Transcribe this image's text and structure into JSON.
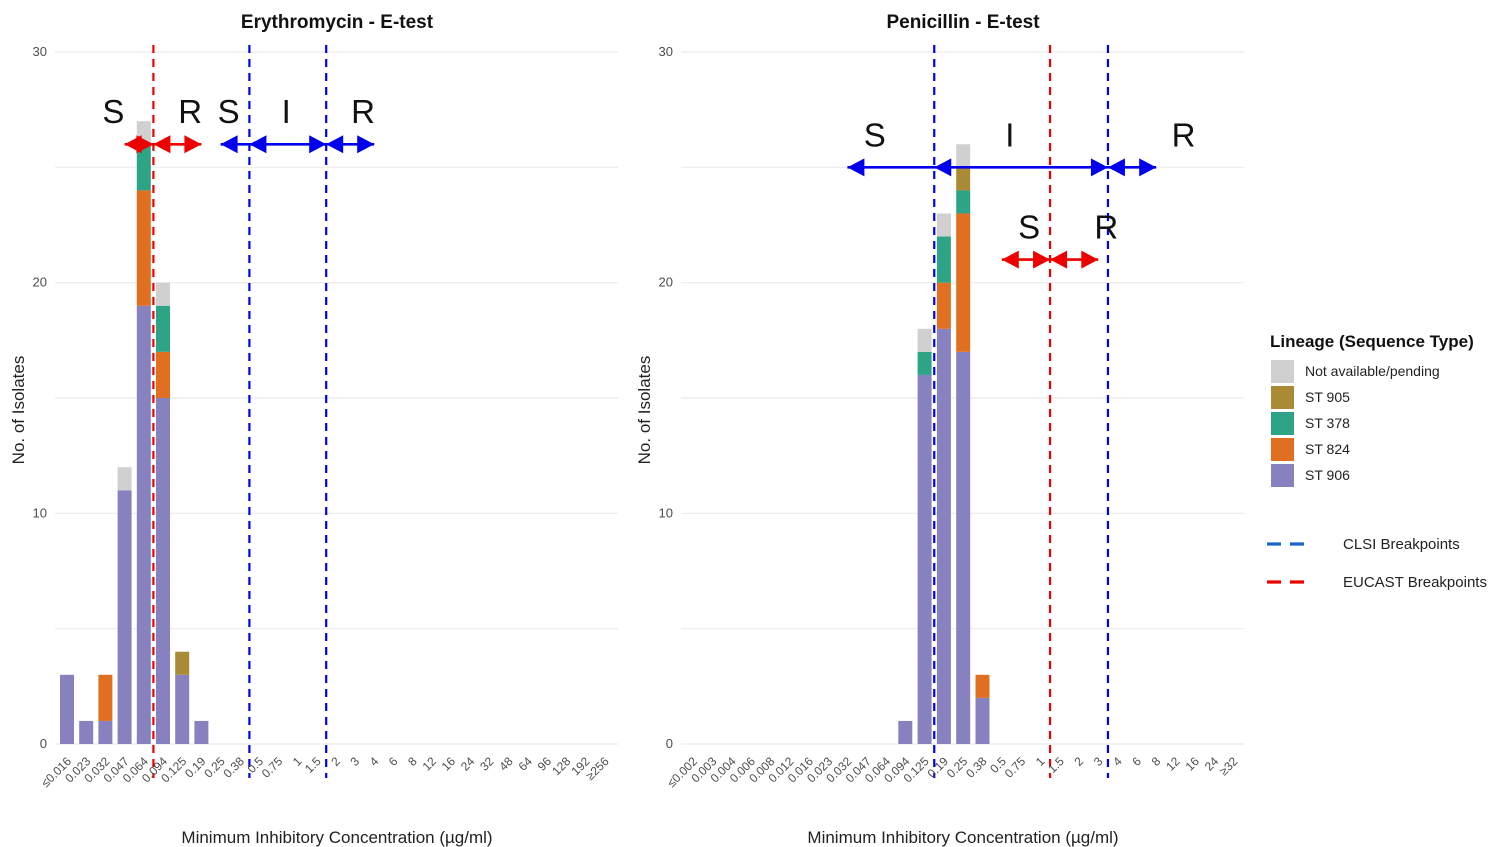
{
  "colors": {
    "Not available/pending": "#d0d0d0",
    "ST 905": "#a98b35",
    "ST 378": "#2ea486",
    "ST 824": "#e07020",
    "ST 906": "#8781c0",
    "clsi": "#0000ee",
    "eucast": "#ee0000"
  },
  "legend": {
    "title": "Lineage (Sequence Type)",
    "items": [
      "Not available/pending",
      "ST 905",
      "ST 378",
      "ST 824",
      "ST 906"
    ],
    "lines": [
      {
        "label": "CLSI Breakpoints",
        "color": "#1a66cc"
      },
      {
        "label": "EUCAST Breakpoints",
        "color": "#ee0000"
      }
    ]
  },
  "chart_data": [
    {
      "type": "bar",
      "stacked": true,
      "title": "Erythromycin  - E-test",
      "xlabel": "Minimum Inhibitory Concentration (µg/ml)",
      "ylabel": "No. of Isolates",
      "ylim": [
        0,
        30
      ],
      "yticks": [
        0,
        10,
        20,
        30
      ],
      "grid": true,
      "categories": [
        "≤0.016",
        "0.023",
        "0.032",
        "0.047",
        "0.064",
        "0.094",
        "0.125",
        "0.19",
        "0.25",
        "0.38",
        "0.5",
        "0.75",
        "1",
        "1.5",
        "2",
        "3",
        "4",
        "6",
        "8",
        "12",
        "16",
        "24",
        "32",
        "48",
        "64",
        "96",
        "128",
        "192",
        "≥256"
      ],
      "series": [
        {
          "name": "ST 906",
          "values": [
            3,
            1,
            1,
            11,
            19,
            15,
            3,
            1,
            0,
            0,
            0,
            0,
            0,
            0,
            0,
            0,
            0,
            0,
            0,
            0,
            0,
            0,
            0,
            0,
            0,
            0,
            0,
            0,
            0
          ]
        },
        {
          "name": "ST 824",
          "values": [
            0,
            0,
            2,
            0,
            5,
            2,
            0,
            0,
            0,
            0,
            0,
            0,
            0,
            0,
            0,
            0,
            0,
            0,
            0,
            0,
            0,
            0,
            0,
            0,
            0,
            0,
            0,
            0,
            0
          ]
        },
        {
          "name": "ST 378",
          "values": [
            0,
            0,
            0,
            0,
            2,
            2,
            0,
            0,
            0,
            0,
            0,
            0,
            0,
            0,
            0,
            0,
            0,
            0,
            0,
            0,
            0,
            0,
            0,
            0,
            0,
            0,
            0,
            0,
            0
          ]
        },
        {
          "name": "ST 905",
          "values": [
            0,
            0,
            0,
            0,
            0,
            0,
            1,
            0,
            0,
            0,
            0,
            0,
            0,
            0,
            0,
            0,
            0,
            0,
            0,
            0,
            0,
            0,
            0,
            0,
            0,
            0,
            0,
            0,
            0
          ]
        },
        {
          "name": "Not available/pending",
          "values": [
            0,
            0,
            0,
            1,
            1,
            1,
            0,
            0,
            0,
            0,
            0,
            0,
            0,
            0,
            0,
            0,
            0,
            0,
            0,
            0,
            0,
            0,
            0,
            0,
            0,
            0,
            0,
            0,
            0
          ]
        }
      ],
      "breakpoints": [
        {
          "type": "eucast",
          "between": [
            "0.064",
            "0.094"
          ]
        },
        {
          "type": "clsi",
          "between": [
            "0.38",
            "0.5"
          ]
        },
        {
          "type": "clsi",
          "between": [
            "1.5",
            "2"
          ]
        }
      ],
      "annotations": [
        {
          "text": "S",
          "near": "0.032",
          "y": 27,
          "color": "eucast"
        },
        {
          "text": "R",
          "near": "0.125",
          "y": 27,
          "color": "eucast"
        },
        {
          "text": "S",
          "near": "0.25",
          "y": 27,
          "color": "clsi"
        },
        {
          "text": "I",
          "near": "0.75",
          "y": 27,
          "color": "clsi"
        },
        {
          "text": "R",
          "near": "3",
          "y": 27,
          "color": "clsi"
        }
      ],
      "arrows": [
        {
          "color": "eucast",
          "from": "0.047",
          "to": "0.19",
          "y": 26,
          "breaks": [
            "0.064/0.094"
          ]
        },
        {
          "color": "clsi",
          "from": "0.25",
          "to": "4",
          "y": 26,
          "breaks": [
            "0.38/0.5",
            "1.5/2"
          ]
        }
      ]
    },
    {
      "type": "bar",
      "stacked": true,
      "title": "Penicillin - E-test",
      "xlabel": "Minimum Inhibitory Concentration (µg/ml)",
      "ylabel": "No. of Isolates",
      "ylim": [
        0,
        30
      ],
      "yticks": [
        0,
        10,
        20,
        30
      ],
      "grid": true,
      "categories": [
        "≤0.002",
        "0.003",
        "0.004",
        "0.006",
        "0.008",
        "0.012",
        "0.016",
        "0.023",
        "0.032",
        "0.047",
        "0.064",
        "0.094",
        "0.125",
        "0.19",
        "0.25",
        "0.38",
        "0.5",
        "0.75",
        "1",
        "1.5",
        "2",
        "3",
        "4",
        "6",
        "8",
        "12",
        "16",
        "24",
        "≥32"
      ],
      "series": [
        {
          "name": "ST 906",
          "values": [
            0,
            0,
            0,
            0,
            0,
            0,
            0,
            0,
            0,
            0,
            0,
            1,
            16,
            18,
            17,
            2,
            0,
            0,
            0,
            0,
            0,
            0,
            0,
            0,
            0,
            0,
            0,
            0,
            0
          ]
        },
        {
          "name": "ST 824",
          "values": [
            0,
            0,
            0,
            0,
            0,
            0,
            0,
            0,
            0,
            0,
            0,
            0,
            0,
            2,
            6,
            1,
            0,
            0,
            0,
            0,
            0,
            0,
            0,
            0,
            0,
            0,
            0,
            0,
            0
          ]
        },
        {
          "name": "ST 378",
          "values": [
            0,
            0,
            0,
            0,
            0,
            0,
            0,
            0,
            0,
            0,
            0,
            0,
            1,
            2,
            1,
            0,
            0,
            0,
            0,
            0,
            0,
            0,
            0,
            0,
            0,
            0,
            0,
            0,
            0
          ]
        },
        {
          "name": "ST 905",
          "values": [
            0,
            0,
            0,
            0,
            0,
            0,
            0,
            0,
            0,
            0,
            0,
            0,
            0,
            0,
            1,
            0,
            0,
            0,
            0,
            0,
            0,
            0,
            0,
            0,
            0,
            0,
            0,
            0,
            0
          ]
        },
        {
          "name": "Not available/pending",
          "values": [
            0,
            0,
            0,
            0,
            0,
            0,
            0,
            0,
            0,
            0,
            0,
            0,
            1,
            1,
            1,
            0,
            0,
            0,
            0,
            0,
            0,
            0,
            0,
            0,
            0,
            0,
            0,
            0,
            0
          ]
        }
      ],
      "breakpoints": [
        {
          "type": "clsi",
          "between": [
            "0.125",
            "0.19"
          ]
        },
        {
          "type": "eucast",
          "between": [
            "1",
            "1.5"
          ]
        },
        {
          "type": "clsi",
          "between": [
            "3",
            "4"
          ]
        }
      ],
      "annotations": [
        {
          "text": "S",
          "near": "0.047",
          "y": 26,
          "color": "clsi"
        },
        {
          "text": "I",
          "near": "0.5",
          "y": 26,
          "color": "clsi"
        },
        {
          "text": "R",
          "near": "12",
          "y": 26,
          "color": "clsi"
        },
        {
          "text": "S",
          "near": "0.75",
          "y": 22,
          "color": "eucast"
        },
        {
          "text": "R",
          "near": "3",
          "y": 22,
          "color": "eucast"
        }
      ],
      "arrows": [
        {
          "color": "clsi",
          "from": "0.032",
          "to": "8",
          "y": 25,
          "breaks": [
            "0.125/0.19",
            "3/4"
          ]
        },
        {
          "color": "eucast",
          "from": "0.5",
          "to": "3",
          "y": 21,
          "breaks": [
            "1/1.5"
          ]
        }
      ]
    }
  ]
}
